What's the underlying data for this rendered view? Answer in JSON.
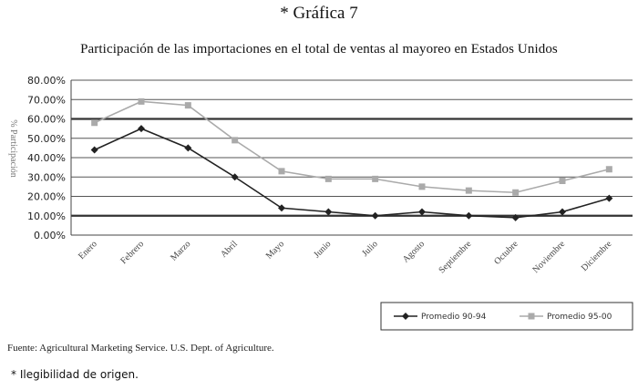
{
  "header": {
    "figure_label": "* Gráfica 7",
    "title": "Participación de las importaciones en el total de ventas al mayoreo en Estados Unidos"
  },
  "chart_data": {
    "type": "line",
    "categories": [
      "Enero",
      "Febrero",
      "Marzo",
      "Abril",
      "Mayo",
      "Junio",
      "Julio",
      "Agosto",
      "Septiembre",
      "Octubre",
      "Noviembre",
      "Diciembre"
    ],
    "ylabel": "% Participación",
    "xlabel": "",
    "ylim": [
      0,
      80
    ],
    "yticks": [
      0,
      10,
      20,
      30,
      40,
      50,
      60,
      70,
      80
    ],
    "ytick_labels": [
      "0.00%",
      "10.00%",
      "20.00%",
      "30.00%",
      "40.00%",
      "50.00%",
      "60.00%",
      "70.00%",
      "80.00%"
    ],
    "grid": true,
    "legend_position": "bottom-right",
    "series": [
      {
        "name": "Promedio 90-94",
        "color": "#222222",
        "marker": "diamond",
        "values": [
          44,
          55,
          45,
          30,
          14,
          12,
          10,
          12,
          10,
          9,
          12,
          19
        ]
      },
      {
        "name": "Promedio 95-00",
        "color": "#aaaaaa",
        "marker": "square",
        "values": [
          58,
          69,
          67,
          49,
          33,
          29,
          29,
          25,
          23,
          22,
          28,
          34
        ]
      }
    ]
  },
  "footer": {
    "source": "Fuente: Agricultural Marketing Service. U.S. Dept. of Agriculture.",
    "note": "* Ilegibilidad de origen."
  }
}
